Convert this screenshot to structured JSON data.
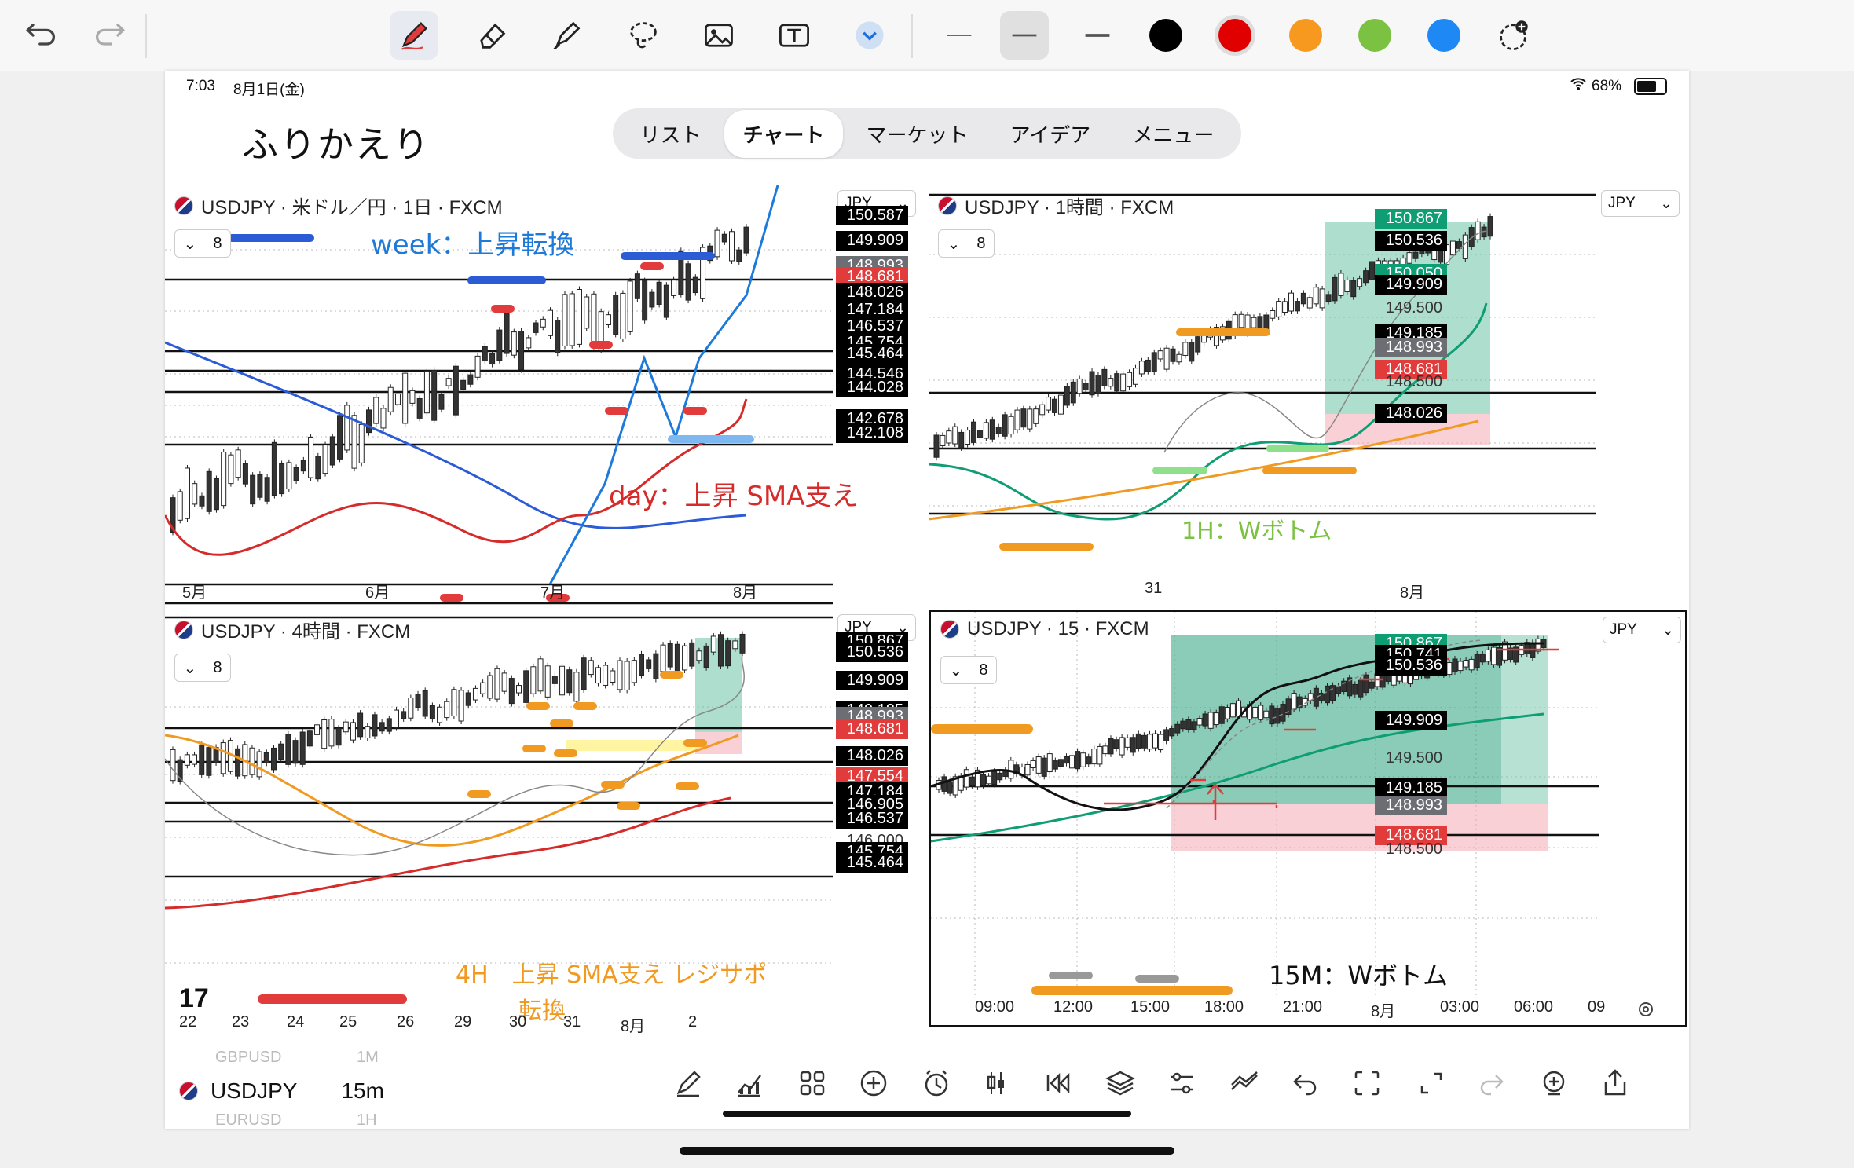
{
  "toolbar": {
    "tools": [
      "undo-icon",
      "redo-icon",
      "pen-icon",
      "eraser-icon",
      "highlighter-icon",
      "lasso-icon",
      "image-icon",
      "text-icon",
      "chevron-down-icon"
    ],
    "colors": [
      "#000000",
      "#e00000",
      "#f7991f",
      "#7cc242",
      "#1e88f5"
    ]
  },
  "status": {
    "time": "7:03",
    "date": "8月1日(金)",
    "battery": "68%"
  },
  "handwriting": {
    "title": "ふりかえり",
    "week_note": "week：上昇転換",
    "day_note": "day：上昇 SMA支え",
    "h1_note": "1H：Wボトム",
    "h4_note_line1": "4H　上昇 SMA支え レジサポ",
    "h4_note_line2": "転換",
    "m15_note": "15M：Wボトム"
  },
  "nav": {
    "tabs": [
      "リスト",
      "チャート",
      "マーケット",
      "アイデア",
      "メニュー"
    ],
    "active": "チャート"
  },
  "panels": {
    "day": {
      "title": "USDJPY · 米ドル／円 · 1日 · FXCM",
      "currency": "JPY",
      "indicator_count": "8",
      "prices": [
        "150.587",
        "149.909",
        "148.993",
        "148.681",
        "148.026",
        "147.184",
        "146.537",
        "145.754",
        "145.464",
        "144.546",
        "144.028",
        "142.678",
        "142.108"
      ],
      "xlabels": [
        "5月",
        "6月",
        "7月",
        "8月"
      ]
    },
    "h1": {
      "title": "USDJPY · 1時間 · FXCM",
      "currency": "JPY",
      "indicator_count": "8",
      "prices": [
        "150.867",
        "150.536",
        "150.050",
        "149.909",
        "149.500",
        "149.185",
        "148.993",
        "148.681",
        "148.500",
        "148.026"
      ],
      "xlabels": [
        "31",
        "8月"
      ]
    },
    "h4": {
      "title": "USDJPY · 4時間 · FXCM",
      "currency": "JPY",
      "indicator_count": "8",
      "prices": [
        "150.867",
        "150.536",
        "149.909",
        "149.185",
        "148.993",
        "148.681",
        "148.026",
        "147.554",
        "147.184",
        "146.905",
        "146.537",
        "146.000",
        "145.754",
        "145.464"
      ],
      "xlabels": [
        "22",
        "23",
        "24",
        "25",
        "26",
        "29",
        "30",
        "31",
        "8月",
        "2"
      ]
    },
    "m15": {
      "title": "USDJPY · 15 · FXCM",
      "currency": "JPY",
      "indicator_count": "8",
      "prices": [
        "150.867",
        "150.741",
        "150.536",
        "149.909",
        "149.500",
        "149.185",
        "148.993",
        "148.681",
        "148.500"
      ],
      "xlabels": [
        "09:00",
        "12:00",
        "15:00",
        "18:00",
        "21:00",
        "8月",
        "03:00",
        "06:00",
        "09"
      ]
    }
  },
  "bottombar": {
    "symbol": "USDJPY",
    "interval": "15m",
    "prev_symbol": "GBPUSD",
    "prev_interval": "1M",
    "next_symbol": "EURUSD",
    "next_interval": "1H"
  }
}
